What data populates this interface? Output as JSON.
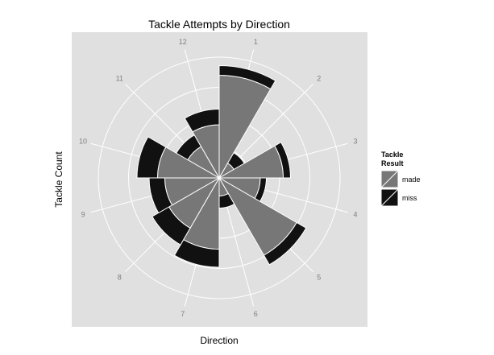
{
  "chart_data": {
    "type": "polar-stacked-bar",
    "title": "Tackle Attempts by Direction",
    "xlabel": "Direction",
    "ylabel": "Tackle Count",
    "categories": [
      "1",
      "2",
      "3",
      "4",
      "5",
      "6",
      "7",
      "8",
      "9",
      "10",
      "11",
      "12"
    ],
    "legend": {
      "title_line1": "Tackle",
      "title_line2": "Result",
      "placement": "right"
    },
    "series": [
      {
        "name": "made",
        "color": "#777777",
        "values": [
          8.5,
          1.4,
          5.3,
          3.4,
          7.4,
          1.5,
          5.9,
          4.8,
          4.5,
          5.1,
          3.0,
          4.4
        ]
      },
      {
        "name": "miss",
        "color": "#111111",
        "values": [
          0.8,
          1.0,
          0.6,
          0.5,
          0.9,
          1.0,
          1.5,
          1.6,
          1.3,
          1.7,
          1.1,
          1.3
        ]
      }
    ],
    "r_grid": [
      2.5,
      5,
      7.5,
      10
    ],
    "r_max": 11,
    "grid": true
  }
}
